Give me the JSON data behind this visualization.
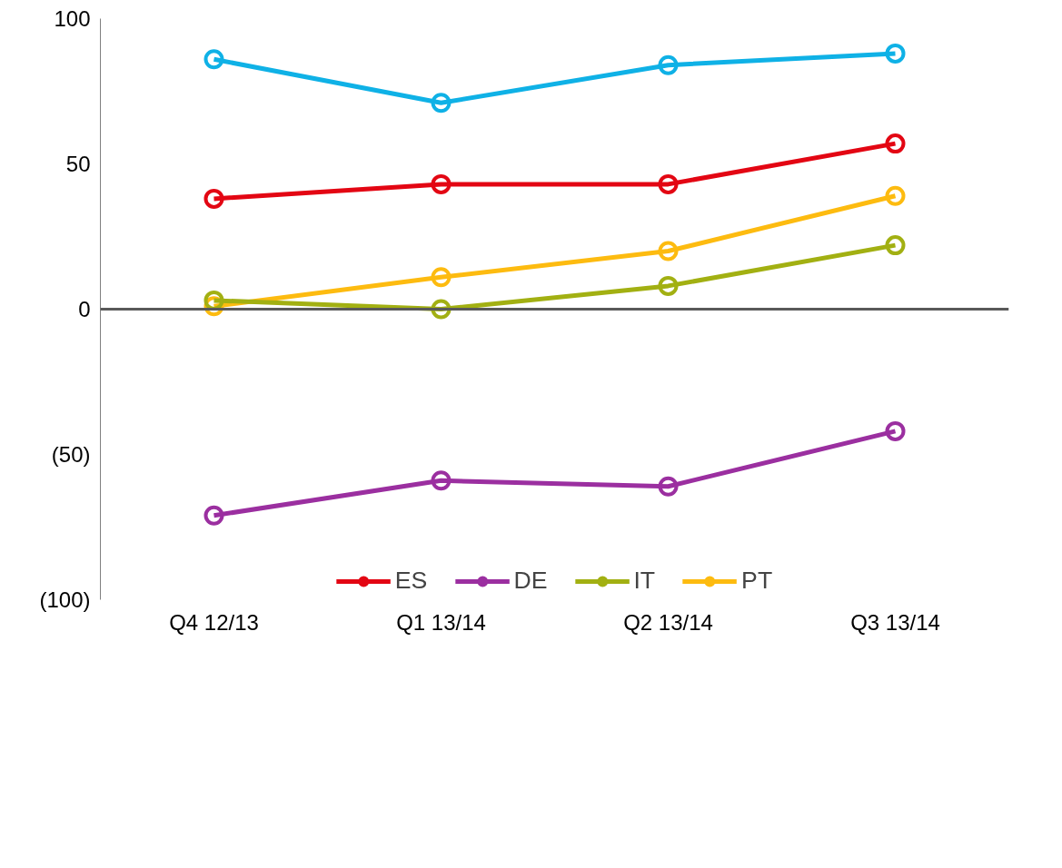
{
  "chart_data": {
    "type": "line",
    "categories": [
      "Q4 12/13",
      "Q1 13/14",
      "Q2 13/14",
      "Q3 13/14"
    ],
    "series": [
      {
        "name": "ES",
        "color": "#e30613",
        "values": [
          38,
          43,
          43,
          57
        ]
      },
      {
        "name": "DE",
        "color": "#9b2fa0",
        "values": [
          -71,
          -59,
          -61,
          -42
        ]
      },
      {
        "name": "IT",
        "color": "#a2b012",
        "values": [
          3,
          0,
          8,
          22
        ]
      },
      {
        "name": "PT",
        "color": "#fdbb10",
        "values": [
          1,
          11,
          20,
          39
        ]
      },
      {
        "color": "#0fb1e6",
        "values": [
          86,
          71,
          84,
          88
        ]
      }
    ],
    "ylim": [
      -100,
      100
    ],
    "yticks": [
      {
        "value": -100,
        "label": "(100)"
      },
      {
        "value": -50,
        "label": "(50)"
      },
      0,
      50,
      100
    ],
    "ref_lines": [
      {
        "axis": "y",
        "value": 0,
        "color": "#595959"
      }
    ],
    "grid": false,
    "legend": "bottom",
    "marker": "circle",
    "line_style": "solid"
  }
}
